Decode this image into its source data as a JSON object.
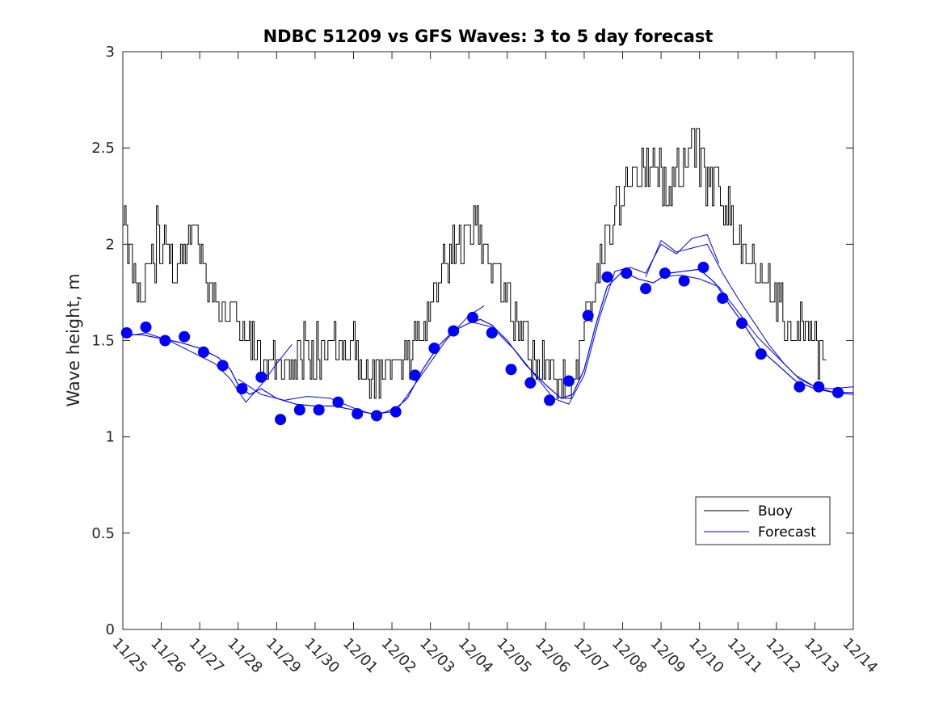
{
  "chart_data": {
    "type": "line",
    "title": "NDBC 51209 vs GFS Waves: 3 to 5 day forecast",
    "xlabel": "",
    "ylabel": "Wave height, m",
    "ylim": [
      0,
      3
    ],
    "yticks": [
      0,
      0.5,
      1,
      1.5,
      2,
      2.5,
      3
    ],
    "ytick_labels": [
      "0",
      "0.5",
      "1",
      "1.5",
      "2",
      "2.5",
      "3"
    ],
    "xlim": [
      0,
      19
    ],
    "x_unit": "days since 11/25",
    "categories": [
      "11/25",
      "11/26",
      "11/27",
      "11/28",
      "11/29",
      "11/30",
      "12/01",
      "12/02",
      "12/03",
      "12/04",
      "12/05",
      "12/06",
      "12/07",
      "12/08",
      "12/09",
      "12/10",
      "12/11",
      "12/12",
      "12/13",
      "12/14"
    ],
    "legend": {
      "position": "bottom-right",
      "entries": [
        "Buoy",
        "Forecast"
      ]
    },
    "colors": {
      "buoy": "#000000",
      "forecast": "#0000ff",
      "axis": "#262626"
    },
    "series": [
      {
        "name": "Buoy",
        "color": "#000000",
        "anchors_x": [
          0,
          0.05,
          0.1,
          0.2,
          0.3,
          0.5,
          0.7,
          1.0,
          1.2,
          1.5,
          1.7,
          1.9,
          2.1,
          2.3,
          2.6,
          2.9,
          3.2,
          3.5,
          3.7,
          3.9,
          4.0,
          4.3,
          4.6,
          5.0,
          5.5,
          6.0,
          6.3,
          6.6,
          7.0,
          7.3,
          7.6,
          7.9,
          8.1,
          8.3,
          8.5,
          8.7,
          8.9,
          9.1,
          9.3,
          9.6,
          9.9,
          10.2,
          10.5,
          10.8,
          11.1,
          11.4,
          11.7,
          11.9,
          12.1,
          12.3,
          12.5,
          12.7,
          12.9,
          13.1,
          13.3,
          13.6,
          13.9,
          14.1,
          14.4,
          14.7,
          14.8,
          14.9,
          15.0,
          15.2,
          15.5,
          15.8,
          16.1,
          16.4,
          16.7,
          17.0,
          17.3,
          17.6,
          17.9,
          18.2,
          18.3
        ],
        "anchors_y": [
          2.1,
          2.15,
          2.05,
          1.9,
          1.88,
          1.8,
          1.85,
          2.0,
          1.9,
          1.85,
          2.05,
          2.0,
          1.85,
          1.75,
          1.7,
          1.6,
          1.55,
          1.45,
          1.4,
          1.35,
          1.32,
          1.35,
          1.35,
          1.38,
          1.48,
          1.4,
          1.35,
          1.3,
          1.32,
          1.4,
          1.5,
          1.65,
          1.75,
          1.85,
          1.95,
          2.0,
          2.05,
          2.1,
          2.05,
          1.9,
          1.75,
          1.6,
          1.5,
          1.4,
          1.35,
          1.32,
          1.3,
          1.4,
          1.6,
          1.8,
          1.95,
          2.1,
          2.2,
          2.3,
          2.35,
          2.4,
          2.38,
          2.3,
          2.35,
          2.4,
          2.6,
          2.55,
          2.4,
          2.35,
          2.3,
          2.15,
          2.0,
          1.9,
          1.8,
          1.7,
          1.6,
          1.55,
          1.5,
          1.42,
          1.4
        ],
        "noise": 0.12,
        "step_days": 0.04167
      },
      {
        "name": "Forecast",
        "color": "#0000ff",
        "marker_x": [
          0.1,
          0.6,
          1.1,
          1.6,
          2.1,
          2.6,
          3.1,
          3.6,
          4.1,
          4.6,
          5.1,
          5.6,
          6.1,
          6.6,
          7.1,
          7.6,
          8.1,
          8.6,
          9.1,
          9.6,
          10.1,
          10.6,
          11.1,
          11.6,
          12.1,
          12.6,
          13.1,
          13.6,
          14.1,
          14.6,
          15.1,
          15.6,
          16.1,
          16.6,
          17.1,
          17.6,
          18.1,
          18.6
        ],
        "marker_y": [
          1.54,
          1.57,
          1.5,
          1.52,
          1.44,
          1.37,
          1.25,
          1.31,
          1.09,
          1.14,
          1.14,
          1.18,
          1.12,
          1.11,
          1.13,
          1.32,
          1.46,
          1.55,
          1.62,
          1.54,
          1.35,
          1.28,
          1.19,
          1.29,
          1.63,
          1.83,
          1.85,
          1.77,
          1.85,
          1.81,
          1.88,
          1.72,
          1.59,
          1.43,
          null,
          1.26,
          1.26,
          1.23
        ],
        "line_x": [
          0,
          0.5,
          1.0,
          1.5,
          2.0,
          2.5,
          2.8,
          3.0,
          3.3,
          3.6,
          4.0,
          4.5,
          5.0,
          5.5,
          6.0,
          6.5,
          7.0,
          7.4,
          7.8,
          8.2,
          8.6,
          9.0,
          9.3,
          9.6,
          10.0,
          10.5,
          11.0,
          11.4,
          11.7,
          12.0,
          12.3,
          12.6,
          13.0,
          13.4,
          13.8,
          14.2,
          14.6,
          15.0,
          15.4,
          15.8,
          16.2,
          16.6,
          17.0,
          17.5,
          18.0,
          18.5,
          19.0
        ],
        "line_y": [
          1.53,
          1.53,
          1.51,
          1.49,
          1.46,
          1.41,
          1.35,
          1.27,
          1.22,
          1.25,
          1.2,
          1.17,
          1.16,
          1.16,
          1.14,
          1.12,
          1.13,
          1.2,
          1.35,
          1.47,
          1.55,
          1.59,
          1.61,
          1.58,
          1.5,
          1.37,
          1.27,
          1.2,
          1.22,
          1.35,
          1.58,
          1.78,
          1.86,
          1.82,
          1.8,
          1.85,
          1.86,
          1.87,
          1.8,
          1.68,
          1.57,
          1.45,
          1.38,
          1.29,
          1.25,
          1.23,
          1.23
        ],
        "extra_runs": [
          {
            "x": [
              0.0,
              0.6,
              1.2,
              1.8,
              2.4,
              2.8,
              3.2,
              3.6,
              4.0,
              4.4
            ],
            "y": [
              1.52,
              1.54,
              1.5,
              1.44,
              1.38,
              1.3,
              1.18,
              1.27,
              1.38,
              1.48
            ]
          },
          {
            "x": [
              3.0,
              3.6,
              4.2,
              4.8,
              5.4,
              6.0,
              6.6,
              7.2,
              7.8,
              8.4,
              9.0,
              9.4
            ],
            "y": [
              1.3,
              1.22,
              1.19,
              1.21,
              1.2,
              1.15,
              1.11,
              1.16,
              1.33,
              1.5,
              1.63,
              1.68
            ]
          },
          {
            "x": [
              9.0,
              9.6,
              10.2,
              10.8,
              11.2,
              11.6,
              12.0,
              12.4,
              12.8,
              13.2,
              13.6,
              14.0,
              14.4,
              14.8,
              15.2,
              15.5
            ],
            "y": [
              1.6,
              1.57,
              1.45,
              1.3,
              1.2,
              1.17,
              1.32,
              1.62,
              1.86,
              1.88,
              1.85,
              2.0,
              1.95,
              2.03,
              2.05,
              1.9
            ]
          },
          {
            "x": [
              13.6,
              14.0,
              14.4,
              14.8,
              15.2,
              15.6,
              16.0,
              16.4,
              16.8,
              17.2,
              17.6,
              18.0,
              18.4,
              19.0
            ],
            "y": [
              1.83,
              2.02,
              1.96,
              1.98,
              2.0,
              1.85,
              1.72,
              1.6,
              1.48,
              1.38,
              1.3,
              1.26,
              1.25,
              1.26
            ]
          },
          {
            "x": [
              14.0,
              14.5,
              15.0,
              15.5,
              16.0,
              16.5,
              17.0,
              17.5,
              18.0,
              18.5,
              19.0
            ],
            "y": [
              1.83,
              1.84,
              1.82,
              1.78,
              1.65,
              1.52,
              1.42,
              1.32,
              1.26,
              1.23,
              1.22
            ]
          }
        ]
      }
    ]
  }
}
